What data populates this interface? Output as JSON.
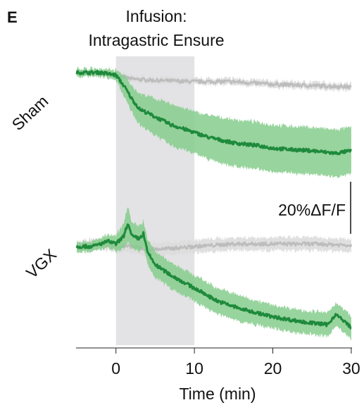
{
  "panel_label": "E",
  "chart_data": {
    "type": "line",
    "title_lines": [
      "Infusion:",
      "Intragastric Ensure"
    ],
    "xlabel": "Time (min)",
    "xlim": [
      -5,
      30
    ],
    "x_ticks": [
      0,
      10,
      20,
      30
    ],
    "x_tick_labels": [
      "0",
      "10",
      "20",
      "30"
    ],
    "infusion_window": [
      0,
      10
    ],
    "scale_bar_label": "20%ΔF/F",
    "scale_bar_value": 20,
    "grid": false,
    "colors": {
      "experimental_line": "#1e8a3c",
      "experimental_band": "#86cc8c",
      "control_line": "#bdbdbd",
      "control_band": "#dcdcdc",
      "infusion_shade": "#e3e3e6"
    },
    "groups": [
      {
        "name": "Sham",
        "series": [
          {
            "role": "control",
            "x": [
              -5,
              0,
              2,
              5,
              10,
              15,
              20,
              25,
              30
            ],
            "y": [
              0,
              -1,
              -2.5,
              -3,
              -3.5,
              -3.5,
              -4.5,
              -5,
              -5.5
            ],
            "sem": [
              1,
              1,
              1.2,
              1.2,
              1.2,
              1.3,
              1.3,
              1.4,
              1.4
            ]
          },
          {
            "role": "experimental",
            "x": [
              -5,
              -2,
              0,
              1,
              2,
              3,
              5,
              7,
              10,
              12,
              15,
              18,
              20,
              22,
              25,
              28,
              30
            ],
            "y": [
              0,
              0,
              -1,
              -5,
              -10,
              -14,
              -17,
              -20,
              -23,
              -25,
              -27,
              -28,
              -29,
              -29.5,
              -30,
              -31,
              -30
            ],
            "sem": [
              1.5,
              1.5,
              2,
              4,
              5,
              6,
              7,
              8,
              8,
              8.5,
              9,
              9,
              9,
              9,
              9,
              9,
              9
            ]
          }
        ]
      },
      {
        "name": "VGX",
        "series": [
          {
            "role": "control",
            "x": [
              -5,
              -2,
              0,
              2,
              4,
              6,
              10,
              15,
              20,
              25,
              30
            ],
            "y": [
              0,
              1,
              0,
              0,
              -1,
              -1,
              0,
              1,
              1,
              1,
              0.5
            ],
            "sem": [
              2,
              2,
              2,
              2.5,
              2.5,
              2.5,
              2.5,
              2.5,
              2.5,
              2.5,
              2.5
            ]
          },
          {
            "role": "experimental",
            "x": [
              -5,
              -3,
              -1,
              0,
              1,
              1.5,
              2,
              3,
              3.5,
              4,
              5,
              7,
              10,
              13,
              16,
              20,
              24,
              27,
              28,
              30
            ],
            "y": [
              0,
              0,
              2,
              1,
              4,
              9,
              4,
              3,
              5,
              -2,
              -7,
              -11,
              -16,
              -21,
              -24,
              -27,
              -29,
              -30,
              -26,
              -31
            ],
            "sem": [
              2,
              2,
              2.5,
              3,
              5,
              7,
              5,
              5,
              5,
              5,
              5,
              5,
              5,
              5,
              5,
              4.5,
              4.5,
              4.5,
              4.5,
              4.5
            ]
          }
        ]
      }
    ]
  }
}
